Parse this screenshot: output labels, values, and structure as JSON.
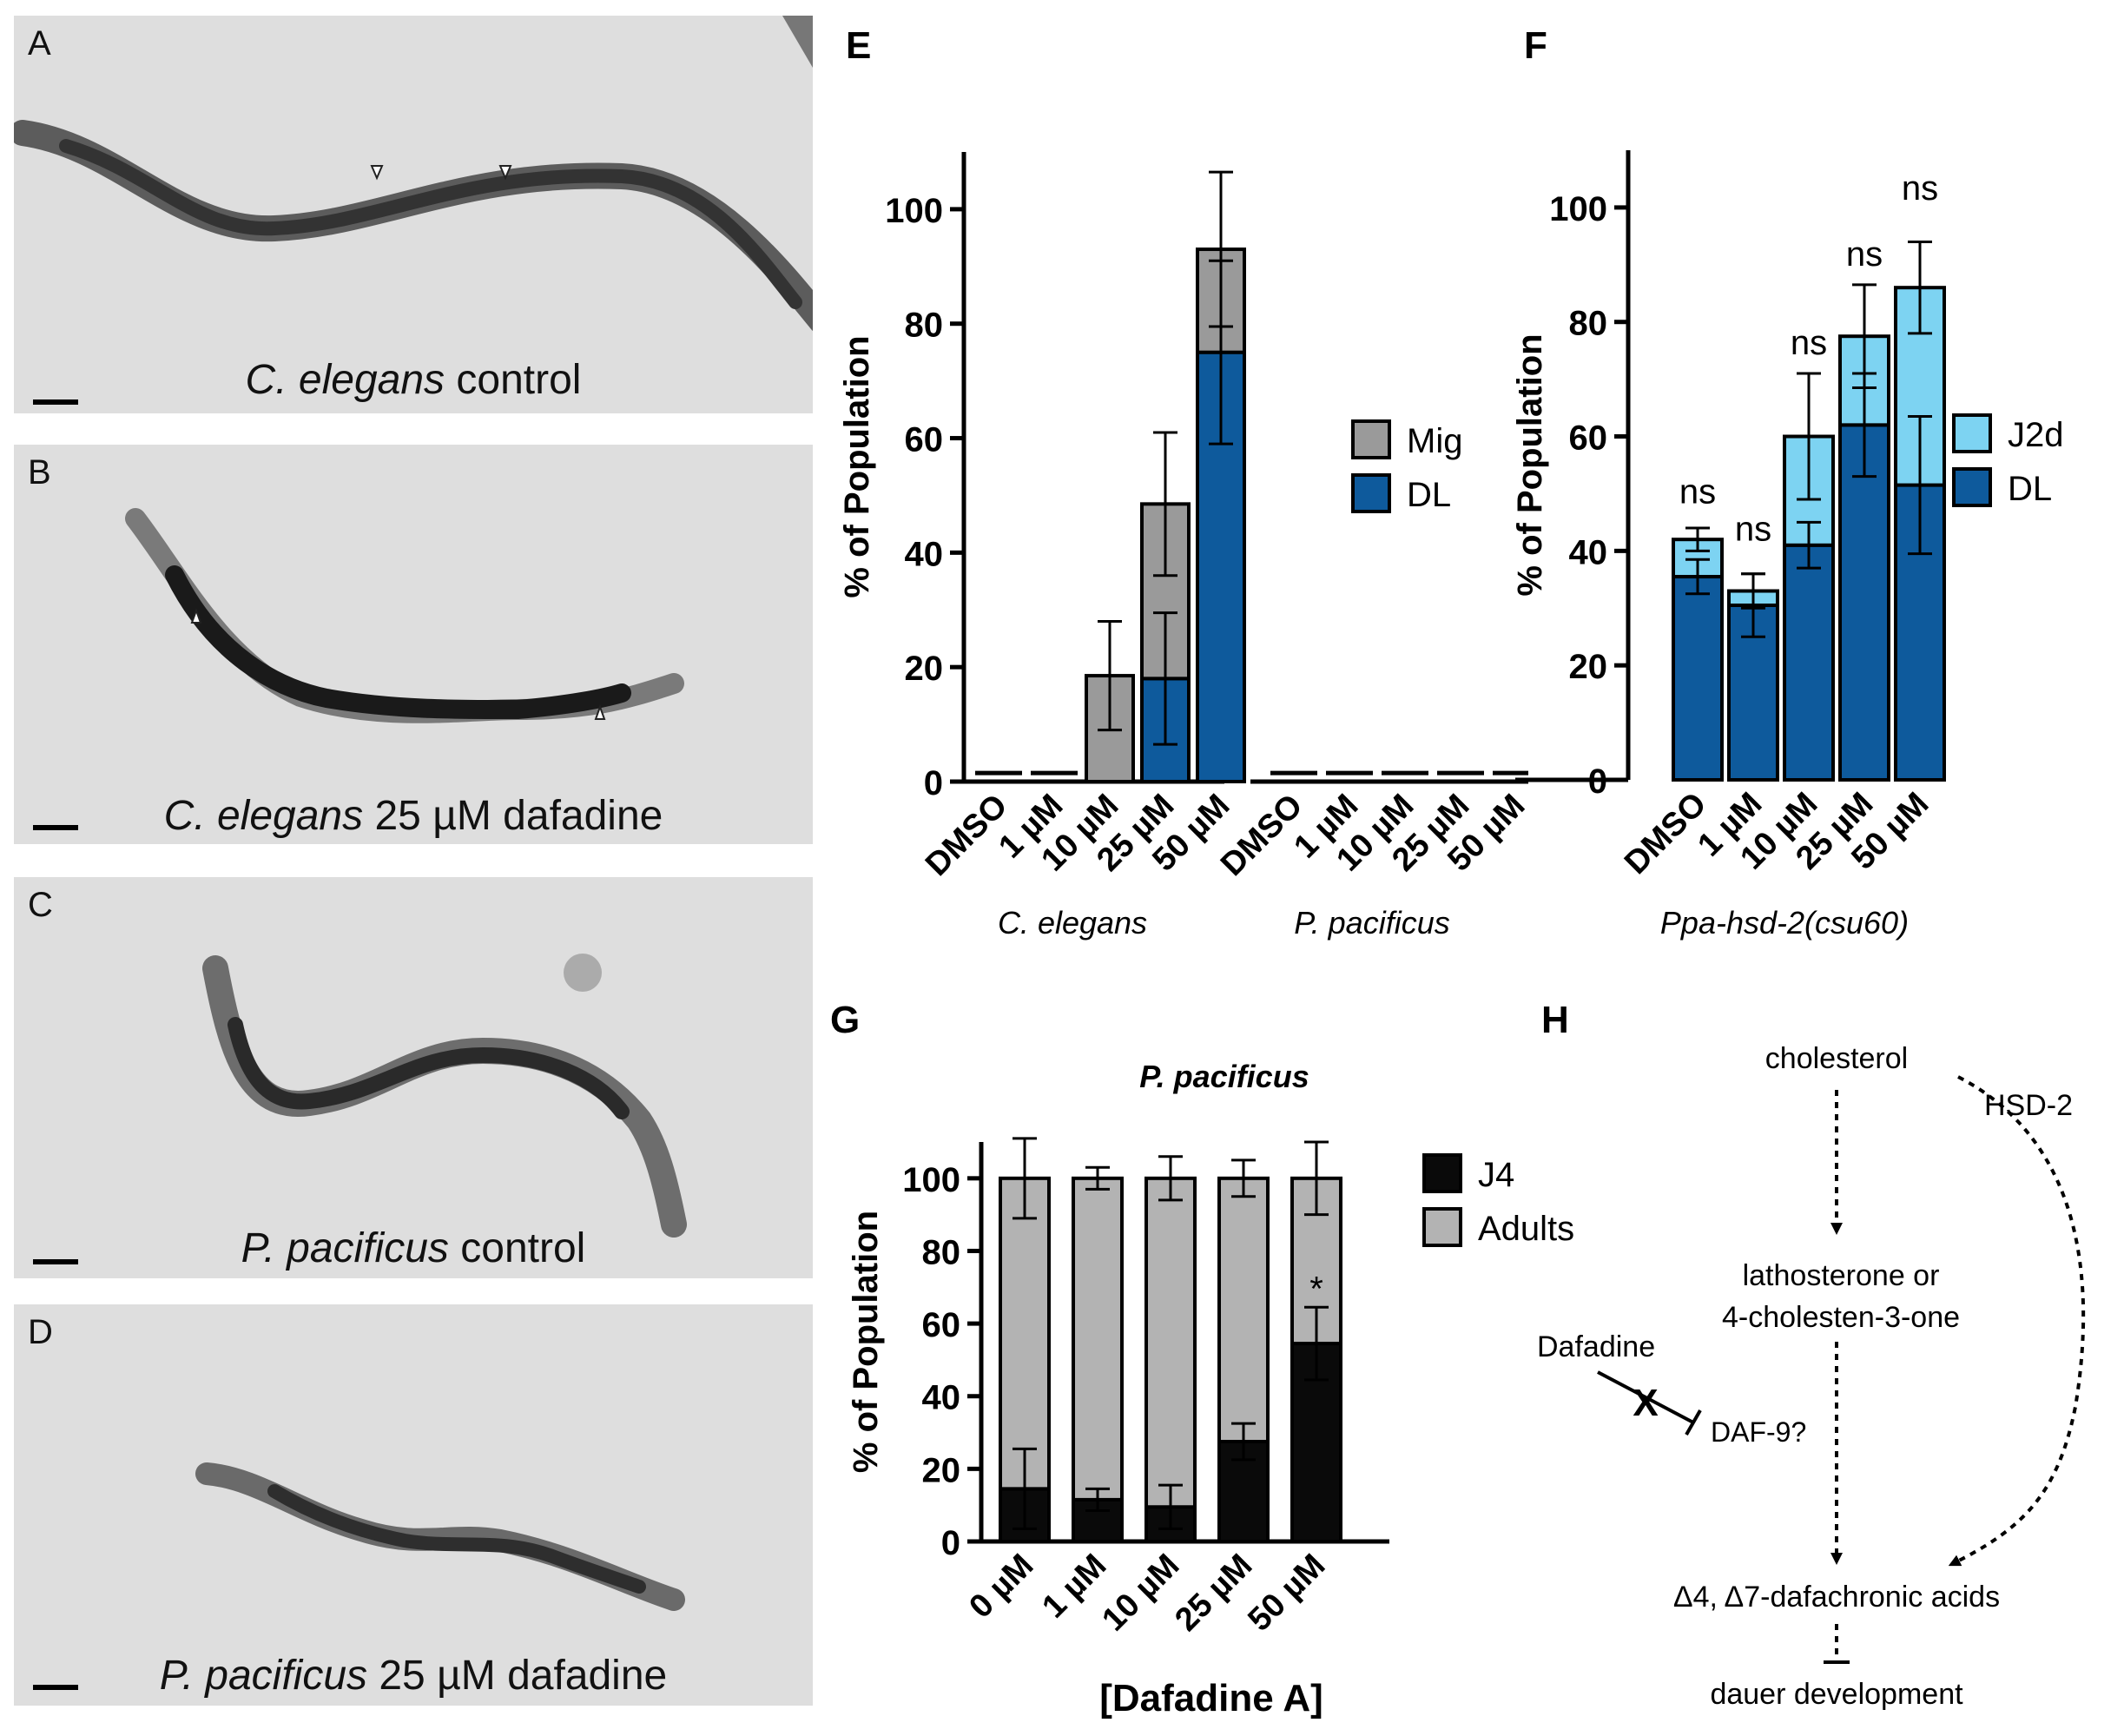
{
  "photos": [
    {
      "letter": "A",
      "species": "C. elegans",
      "treatment": "control"
    },
    {
      "letter": "B",
      "species": "C. elegans",
      "treatment": "25 µM dafadine"
    },
    {
      "letter": "C",
      "species": "P. pacificus",
      "treatment": "control"
    },
    {
      "letter": "D",
      "species": "P. pacificus",
      "treatment": "25 µM dafadine"
    }
  ],
  "panel_labels": {
    "E": "E",
    "F": "F",
    "G": "G",
    "H": "H"
  },
  "chart_data": [
    {
      "panel": "E",
      "type": "bar",
      "stacked": true,
      "ylabel": "% of Population",
      "ylim": [
        0,
        110
      ],
      "yticks": [
        0,
        20,
        40,
        60,
        80,
        100
      ],
      "categories": [
        "DMSO",
        "1 µM",
        "10 µM",
        "25 µM",
        "50 µM",
        "DMSO",
        "1 µM",
        "10 µM",
        "25 µM",
        "50 µM"
      ],
      "groups": [
        {
          "name": "C. elegans"
        },
        {
          "name": "P. pacificus"
        }
      ],
      "series": [
        {
          "name": "DL",
          "color": "#0e5a9c",
          "values": [
            0,
            0,
            0,
            18,
            75,
            0,
            0,
            0,
            0,
            0
          ],
          "err": [
            0,
            0,
            0,
            11.5,
            16,
            0,
            0,
            0,
            0,
            0
          ]
        },
        {
          "name": "Mig",
          "color": "#9a9a9a",
          "values": [
            0,
            0,
            18.5,
            30.5,
            18,
            0,
            0,
            0,
            0,
            0
          ],
          "err": [
            0,
            0,
            9.5,
            12.5,
            13.5,
            0,
            0,
            0,
            0,
            0
          ]
        }
      ],
      "legend": [
        "Mig",
        "DL"
      ]
    },
    {
      "panel": "F",
      "type": "bar",
      "stacked": true,
      "ylabel": "% of Population",
      "ylim": [
        0,
        110
      ],
      "yticks": [
        0,
        20,
        40,
        60,
        80,
        100
      ],
      "categories": [
        "DMSO",
        "1 µM",
        "10 µM",
        "25 µM",
        "50 µM"
      ],
      "xgroup": "Ppa-hsd-2(csu60)",
      "series": [
        {
          "name": "DL",
          "color": "#0e5a9c",
          "values": [
            35.5,
            30.5,
            41,
            62,
            51.5
          ],
          "err": [
            3,
            5.5,
            4,
            9,
            12
          ]
        },
        {
          "name": "J2d",
          "color": "#7dd3f2",
          "values": [
            6.5,
            2.5,
            19,
            15.5,
            34.5
          ],
          "err": [
            2,
            3,
            11,
            9,
            8
          ]
        }
      ],
      "annotations": [
        "ns",
        "ns",
        "ns",
        "ns",
        "ns"
      ],
      "legend": [
        "J2d",
        "DL"
      ]
    },
    {
      "panel": "G",
      "type": "bar",
      "stacked": true,
      "title": "P. pacificus",
      "ylabel": "% of Population",
      "xlabel": "[Dafadine A]",
      "ylim": [
        0,
        110
      ],
      "yticks": [
        0,
        20,
        40,
        60,
        80,
        100
      ],
      "categories": [
        "0 µM",
        "1 µM",
        "10 µM",
        "25 µM",
        "50 µM"
      ],
      "series": [
        {
          "name": "J4",
          "color": "#0a0a0a",
          "values": [
            14.5,
            11.5,
            9.5,
            27.5,
            54.5
          ],
          "err": [
            11,
            3,
            6,
            5,
            10
          ]
        },
        {
          "name": "Adults",
          "color": "#b3b3b3",
          "values": [
            85.5,
            88.5,
            90.5,
            72.5,
            45.5
          ],
          "err": [
            11,
            3,
            6,
            5,
            10
          ]
        }
      ],
      "annotations": [
        "",
        "",
        "",
        "",
        "*"
      ],
      "legend": [
        "J4",
        "Adults"
      ]
    }
  ],
  "pathway": {
    "cholesterol": "cholesterol",
    "hsd2": "HSD-2",
    "lathosterone_1": "lathosterone or",
    "lathosterone_2": "4-cholesten-3-one",
    "dafadine": "Dafadine",
    "x_mark": "X",
    "daf9": "DAF-9?",
    "dafachronic": "Δ4, Δ7-dafachronic acids",
    "dauer": "dauer development"
  }
}
